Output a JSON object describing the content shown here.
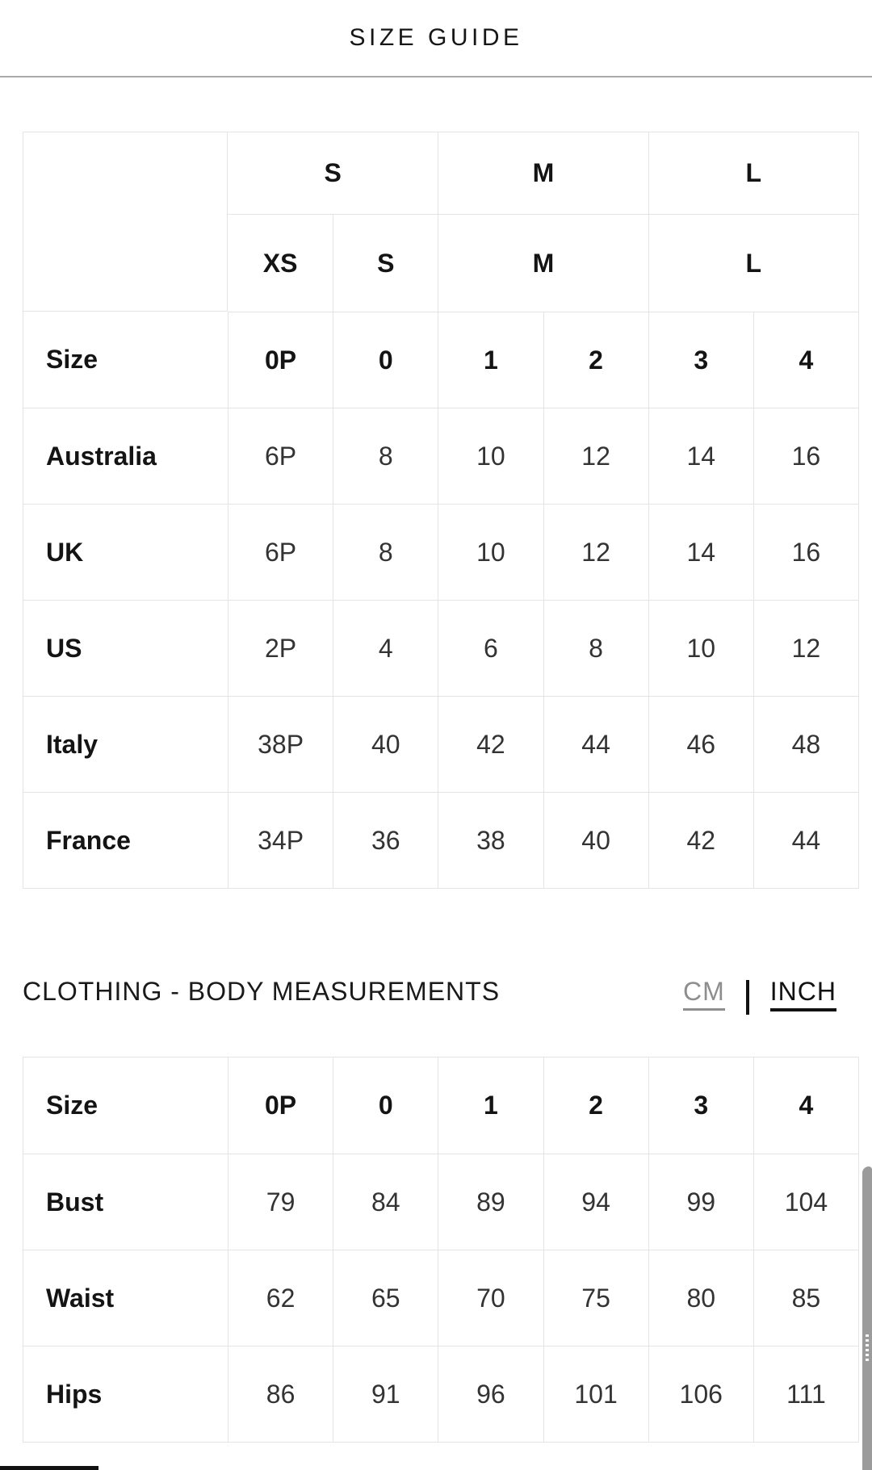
{
  "dialog": {
    "title": "SIZE GUIDE"
  },
  "size_table": {
    "group_headers": [
      "S",
      "M",
      "L"
    ],
    "sub_headers": [
      "XS",
      "S",
      "M",
      "L"
    ],
    "rows": [
      {
        "label": "Size",
        "values": [
          "0P",
          "0",
          "1",
          "2",
          "3",
          "4"
        ]
      },
      {
        "label": "Australia",
        "values": [
          "6P",
          "8",
          "10",
          "12",
          "14",
          "16"
        ]
      },
      {
        "label": "UK",
        "values": [
          "6P",
          "8",
          "10",
          "12",
          "14",
          "16"
        ]
      },
      {
        "label": "US",
        "values": [
          "2P",
          "4",
          "6",
          "8",
          "10",
          "12"
        ]
      },
      {
        "label": "Italy",
        "values": [
          "38P",
          "40",
          "42",
          "44",
          "46",
          "48"
        ]
      },
      {
        "label": "France",
        "values": [
          "34P",
          "36",
          "38",
          "40",
          "42",
          "44"
        ]
      }
    ]
  },
  "measurements": {
    "heading": "CLOTHING - BODY MEASUREMENTS",
    "units": {
      "cm": "CM",
      "separator": "|",
      "inch": "INCH"
    },
    "table": {
      "rows": [
        {
          "label": "Size",
          "values": [
            "0P",
            "0",
            "1",
            "2",
            "3",
            "4"
          ]
        },
        {
          "label": "Bust",
          "values": [
            "79",
            "84",
            "89",
            "94",
            "99",
            "104"
          ]
        },
        {
          "label": "Waist",
          "values": [
            "62",
            "65",
            "70",
            "75",
            "80",
            "85"
          ]
        },
        {
          "label": "Hips",
          "values": [
            "86",
            "91",
            "96",
            "101",
            "106",
            "111"
          ]
        }
      ]
    }
  },
  "colors": {
    "text": "#1d1d1d",
    "muted_unit": "#8e8e8e",
    "active_unit": "#111111",
    "table_border": "#e4e4e4",
    "header_divider": "#ababab",
    "scrollbar": "#9b9b9b"
  }
}
